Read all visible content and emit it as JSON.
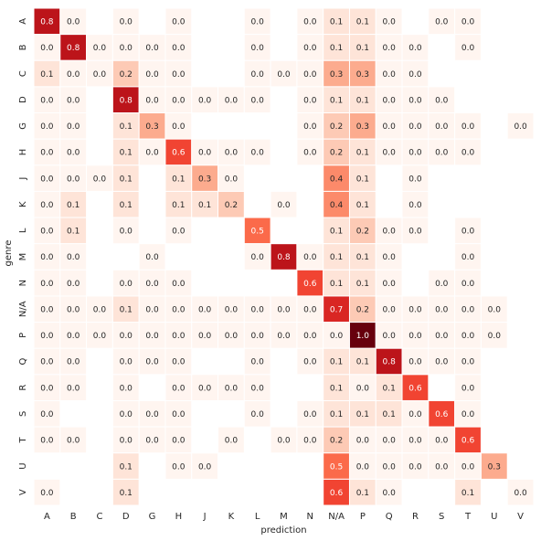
{
  "chart_data": {
    "type": "heatmap",
    "xlabel": "prediction",
    "ylabel": "genre",
    "x_categories": [
      "A",
      "B",
      "C",
      "D",
      "G",
      "H",
      "J",
      "K",
      "L",
      "M",
      "N",
      "N/A",
      "P",
      "Q",
      "R",
      "S",
      "T",
      "U",
      "V"
    ],
    "y_categories": [
      "A",
      "B",
      "C",
      "D",
      "G",
      "H",
      "J",
      "K",
      "L",
      "M",
      "N",
      "N/A",
      "P",
      "Q",
      "R",
      "S",
      "T",
      "U",
      "V"
    ],
    "colormap": "Reds",
    "value_range": [
      0,
      1
    ],
    "grid": false,
    "colorbar": false,
    "values": [
      [
        0.8,
        0.0,
        null,
        0.0,
        null,
        0.0,
        null,
        null,
        0.0,
        null,
        0.0,
        0.1,
        0.1,
        0.0,
        null,
        0.0,
        0.0,
        null,
        null
      ],
      [
        0.0,
        0.8,
        0.0,
        0.0,
        0.0,
        0.0,
        null,
        null,
        0.0,
        null,
        0.0,
        0.1,
        0.1,
        0.0,
        0.0,
        null,
        0.0,
        null,
        null
      ],
      [
        0.1,
        0.0,
        0.0,
        0.2,
        0.0,
        0.0,
        null,
        null,
        0.0,
        0.0,
        0.0,
        0.3,
        0.3,
        0.0,
        0.0,
        null,
        null,
        null,
        null
      ],
      [
        0.0,
        0.0,
        null,
        0.8,
        0.0,
        0.0,
        0.0,
        0.0,
        0.0,
        null,
        0.0,
        0.1,
        0.1,
        0.0,
        0.0,
        0.0,
        null,
        null,
        null
      ],
      [
        0.0,
        0.0,
        null,
        0.1,
        0.3,
        0.0,
        null,
        null,
        null,
        null,
        0.0,
        0.2,
        0.3,
        0.0,
        0.0,
        0.0,
        0.0,
        null,
        0.0
      ],
      [
        0.0,
        0.0,
        null,
        0.1,
        0.0,
        0.6,
        0.0,
        0.0,
        0.0,
        null,
        0.0,
        0.2,
        0.1,
        0.0,
        0.0,
        0.0,
        0.0,
        null,
        null
      ],
      [
        0.0,
        0.0,
        0.0,
        0.1,
        null,
        0.1,
        0.3,
        0.0,
        null,
        null,
        null,
        0.4,
        0.1,
        null,
        0.0,
        null,
        null,
        null,
        null
      ],
      [
        0.0,
        0.1,
        null,
        0.1,
        null,
        0.1,
        0.1,
        0.2,
        null,
        0.0,
        null,
        0.4,
        0.1,
        null,
        0.0,
        null,
        null,
        null,
        null
      ],
      [
        0.0,
        0.1,
        null,
        0.0,
        null,
        0.0,
        null,
        null,
        0.5,
        null,
        null,
        0.1,
        0.2,
        0.0,
        0.0,
        null,
        0.0,
        null,
        null
      ],
      [
        0.0,
        0.0,
        null,
        null,
        0.0,
        null,
        null,
        null,
        0.0,
        0.8,
        0.0,
        0.1,
        0.1,
        0.0,
        null,
        null,
        0.0,
        null,
        null
      ],
      [
        0.0,
        0.0,
        null,
        0.0,
        0.0,
        0.0,
        null,
        null,
        null,
        null,
        0.6,
        0.1,
        0.1,
        0.0,
        null,
        0.0,
        0.0,
        null,
        null
      ],
      [
        0.0,
        0.0,
        0.0,
        0.1,
        0.0,
        0.0,
        0.0,
        0.0,
        0.0,
        0.0,
        0.0,
        0.7,
        0.2,
        0.0,
        0.0,
        0.0,
        0.0,
        0.0,
        null
      ],
      [
        0.0,
        0.0,
        0.0,
        0.0,
        0.0,
        0.0,
        0.0,
        0.0,
        0.0,
        0.0,
        0.0,
        0.0,
        1.0,
        0.0,
        0.0,
        0.0,
        0.0,
        0.0,
        null
      ],
      [
        0.0,
        0.0,
        null,
        0.0,
        0.0,
        0.0,
        null,
        null,
        0.0,
        null,
        0.0,
        0.1,
        0.1,
        0.8,
        0.0,
        0.0,
        0.0,
        null,
        null
      ],
      [
        0.0,
        0.0,
        null,
        0.0,
        null,
        0.0,
        0.0,
        0.0,
        0.0,
        null,
        null,
        0.1,
        0.0,
        0.1,
        0.6,
        null,
        0.0,
        null,
        null
      ],
      [
        0.0,
        null,
        null,
        0.0,
        0.0,
        0.0,
        null,
        null,
        0.0,
        null,
        0.0,
        0.1,
        0.1,
        0.1,
        0.0,
        0.6,
        0.0,
        null,
        null
      ],
      [
        0.0,
        0.0,
        null,
        0.0,
        0.0,
        0.0,
        null,
        0.0,
        null,
        0.0,
        0.0,
        0.2,
        0.0,
        0.0,
        0.0,
        0.0,
        0.6,
        null,
        null
      ],
      [
        null,
        null,
        null,
        0.1,
        null,
        0.0,
        0.0,
        null,
        null,
        null,
        null,
        0.5,
        0.0,
        0.0,
        0.0,
        0.0,
        0.0,
        0.3,
        null
      ],
      [
        0.0,
        null,
        null,
        0.1,
        null,
        null,
        null,
        null,
        null,
        null,
        null,
        0.6,
        0.1,
        0.0,
        null,
        null,
        0.1,
        null,
        0.0
      ]
    ]
  }
}
